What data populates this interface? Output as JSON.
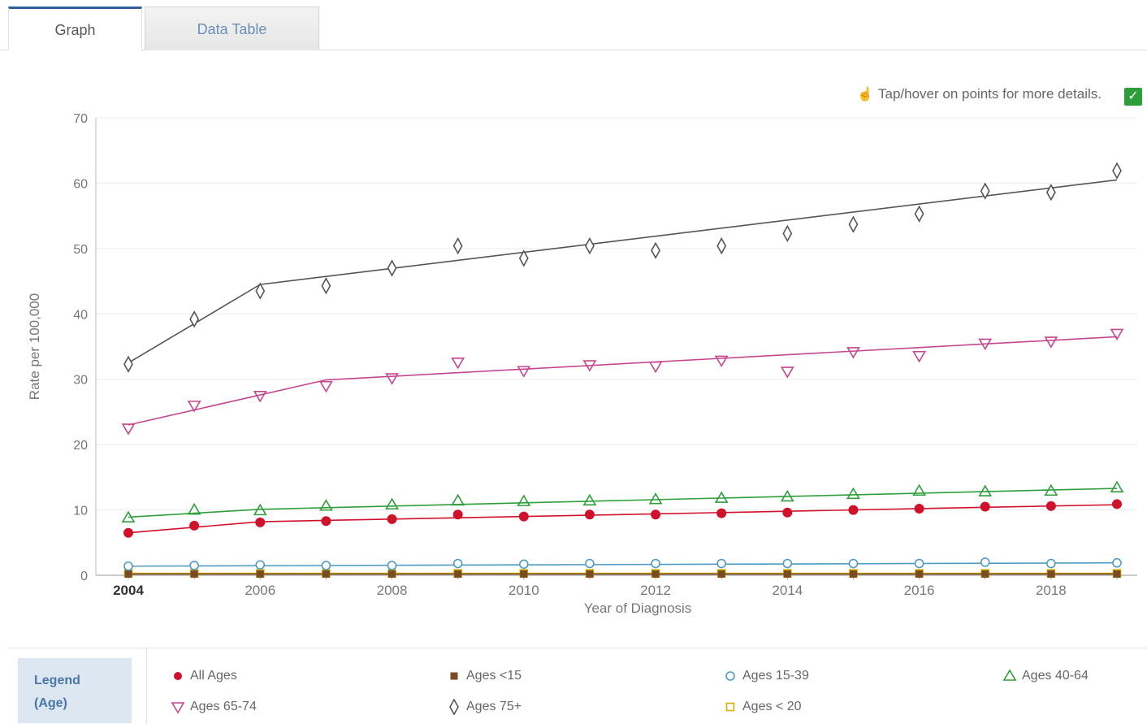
{
  "tabs": [
    {
      "label": "Graph"
    },
    {
      "label": "Data Table"
    }
  ],
  "hint": {
    "text": "Tap/hover on points for more details.",
    "icon": "pointer-icon"
  },
  "legend": {
    "title_line1": "Legend",
    "title_line2": "(Age)",
    "items": [
      {
        "label": "All Ages",
        "color": "#d0112b",
        "marker": "circle-filled"
      },
      {
        "label": "Ages <15",
        "color": "#7a4a22",
        "marker": "square-filled"
      },
      {
        "label": "Ages 15-39",
        "color": "#4f9bc4",
        "marker": "circle-open"
      },
      {
        "label": "Ages 40-64",
        "color": "#2e9e3a",
        "marker": "triangle-up-open"
      },
      {
        "label": "Ages 65-74",
        "color": "#c4478f",
        "marker": "triangle-down-open"
      },
      {
        "label": "Ages 75+",
        "color": "#555555",
        "marker": "diamond-open"
      },
      {
        "label": "Ages < 20",
        "color": "#d8b400",
        "marker": "square-open"
      }
    ]
  },
  "chart_data": {
    "type": "line",
    "xlabel": "Year of Diagnosis",
    "ylabel": "Rate per 100,000",
    "xlim": [
      2004,
      2019
    ],
    "ylim": [
      0,
      70
    ],
    "yticks": [
      0,
      10,
      20,
      30,
      40,
      50,
      60,
      70
    ],
    "xticks": [
      2004,
      2006,
      2008,
      2010,
      2012,
      2014,
      2016,
      2018
    ],
    "grid": true,
    "x": [
      2004,
      2005,
      2006,
      2007,
      2008,
      2009,
      2010,
      2011,
      2012,
      2013,
      2014,
      2015,
      2016,
      2017,
      2018,
      2019
    ],
    "series": [
      {
        "name": "Ages 75+",
        "color": "#555555",
        "marker": "diamond-open",
        "observed": [
          32.3,
          39.2,
          43.5,
          44.3,
          47.0,
          50.4,
          48.5,
          50.4,
          49.7,
          50.4,
          52.3,
          53.7,
          55.3,
          58.8,
          58.6,
          61.9
        ],
        "fit": [
          [
            2004,
            32.5
          ],
          [
            2006,
            44.5
          ],
          [
            2019,
            60.5
          ]
        ]
      },
      {
        "name": "Ages 65-74",
        "color": "#c4478f",
        "marker": "triangle-down-open",
        "observed": [
          22.5,
          26.0,
          27.5,
          29.0,
          30.2,
          32.6,
          31.3,
          32.2,
          32.0,
          32.9,
          31.2,
          34.2,
          33.6,
          35.5,
          35.8,
          37.0
        ],
        "fit": [
          [
            2004,
            23.0
          ],
          [
            2007,
            29.9
          ],
          [
            2019,
            36.5
          ]
        ]
      },
      {
        "name": "Ages 40-64",
        "color": "#2e9e3a",
        "marker": "triangle-up-open",
        "observed": [
          8.8,
          10.0,
          9.9,
          10.6,
          10.8,
          11.4,
          11.3,
          11.4,
          11.6,
          11.8,
          12.0,
          12.4,
          12.9,
          12.8,
          12.9,
          13.4
        ],
        "fit": [
          [
            2004,
            8.9
          ],
          [
            2006,
            10.1
          ],
          [
            2019,
            13.3
          ]
        ]
      },
      {
        "name": "All Ages",
        "color": "#d0112b",
        "marker": "circle-filled",
        "observed": [
          6.5,
          7.6,
          8.1,
          8.3,
          8.6,
          9.3,
          9.0,
          9.3,
          9.3,
          9.5,
          9.6,
          10.0,
          10.2,
          10.5,
          10.6,
          10.9
        ],
        "fit": [
          [
            2004,
            6.5
          ],
          [
            2006,
            8.2
          ],
          [
            2019,
            10.8
          ]
        ]
      },
      {
        "name": "Ages 15-39",
        "color": "#4f9bc4",
        "marker": "circle-open",
        "observed": [
          1.4,
          1.5,
          1.6,
          1.5,
          1.5,
          1.8,
          1.7,
          1.8,
          1.8,
          1.8,
          1.8,
          1.8,
          1.8,
          2.0,
          1.8,
          1.9
        ],
        "fit": [
          [
            2004,
            1.4
          ],
          [
            2019,
            1.9
          ]
        ]
      },
      {
        "name": "Ages <15",
        "color": "#7a4a22",
        "marker": "square-filled",
        "observed": [
          0.2,
          0.2,
          0.2,
          0.2,
          0.2,
          0.2,
          0.2,
          0.2,
          0.2,
          0.2,
          0.2,
          0.2,
          0.2,
          0.2,
          0.2,
          0.2
        ],
        "fit": [
          [
            2004,
            0.2
          ],
          [
            2019,
            0.2
          ]
        ]
      },
      {
        "name": "Ages < 20",
        "color": "#d8b400",
        "marker": "square-open",
        "observed": [
          0.3,
          0.3,
          0.3,
          0.3,
          0.3,
          0.3,
          0.3,
          0.3,
          0.3,
          0.3,
          0.3,
          0.3,
          0.3,
          0.3,
          0.3,
          0.3
        ],
        "fit": [
          [
            2004,
            0.3
          ],
          [
            2019,
            0.3
          ]
        ]
      }
    ]
  }
}
